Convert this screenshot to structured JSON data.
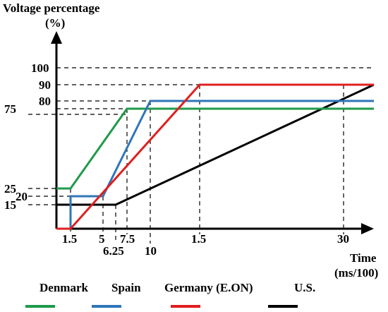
{
  "chart_data": {
    "type": "line",
    "title": "",
    "ylabel_line1": "Voltage percentage",
    "ylabel_line2": "(%)",
    "xlabel_line1": "Time",
    "xlabel_line2": "(ms/100)",
    "x_ticks": [
      "1.5",
      "5",
      "7.5",
      "6.25",
      "10",
      "1.5",
      "30"
    ],
    "y_ticks": [
      "100",
      "90",
      "80",
      "75",
      "25",
      "20",
      "15"
    ],
    "series": [
      {
        "name": "Denmark",
        "color": "#1f9a4a",
        "points": [
          [
            0,
            25
          ],
          [
            1.5,
            25
          ],
          [
            7.5,
            75
          ],
          [
            30,
            75
          ]
        ]
      },
      {
        "name": "Spain",
        "color": "#2f76b8",
        "points": [
          [
            1.5,
            0
          ],
          [
            1.5,
            20
          ],
          [
            5,
            20
          ],
          [
            10,
            80
          ],
          [
            30,
            80
          ]
        ]
      },
      {
        "name": "Germany (E.ON)",
        "color": "#e01f1f",
        "points": [
          [
            0,
            0
          ],
          [
            1.5,
            0
          ],
          [
            15,
            90
          ],
          [
            30,
            90
          ]
        ]
      },
      {
        "name": "U.S.",
        "color": "#000000",
        "points": [
          [
            0,
            15
          ],
          [
            6.25,
            15
          ],
          [
            30,
            90
          ]
        ]
      }
    ],
    "legend_position": "bottom"
  }
}
